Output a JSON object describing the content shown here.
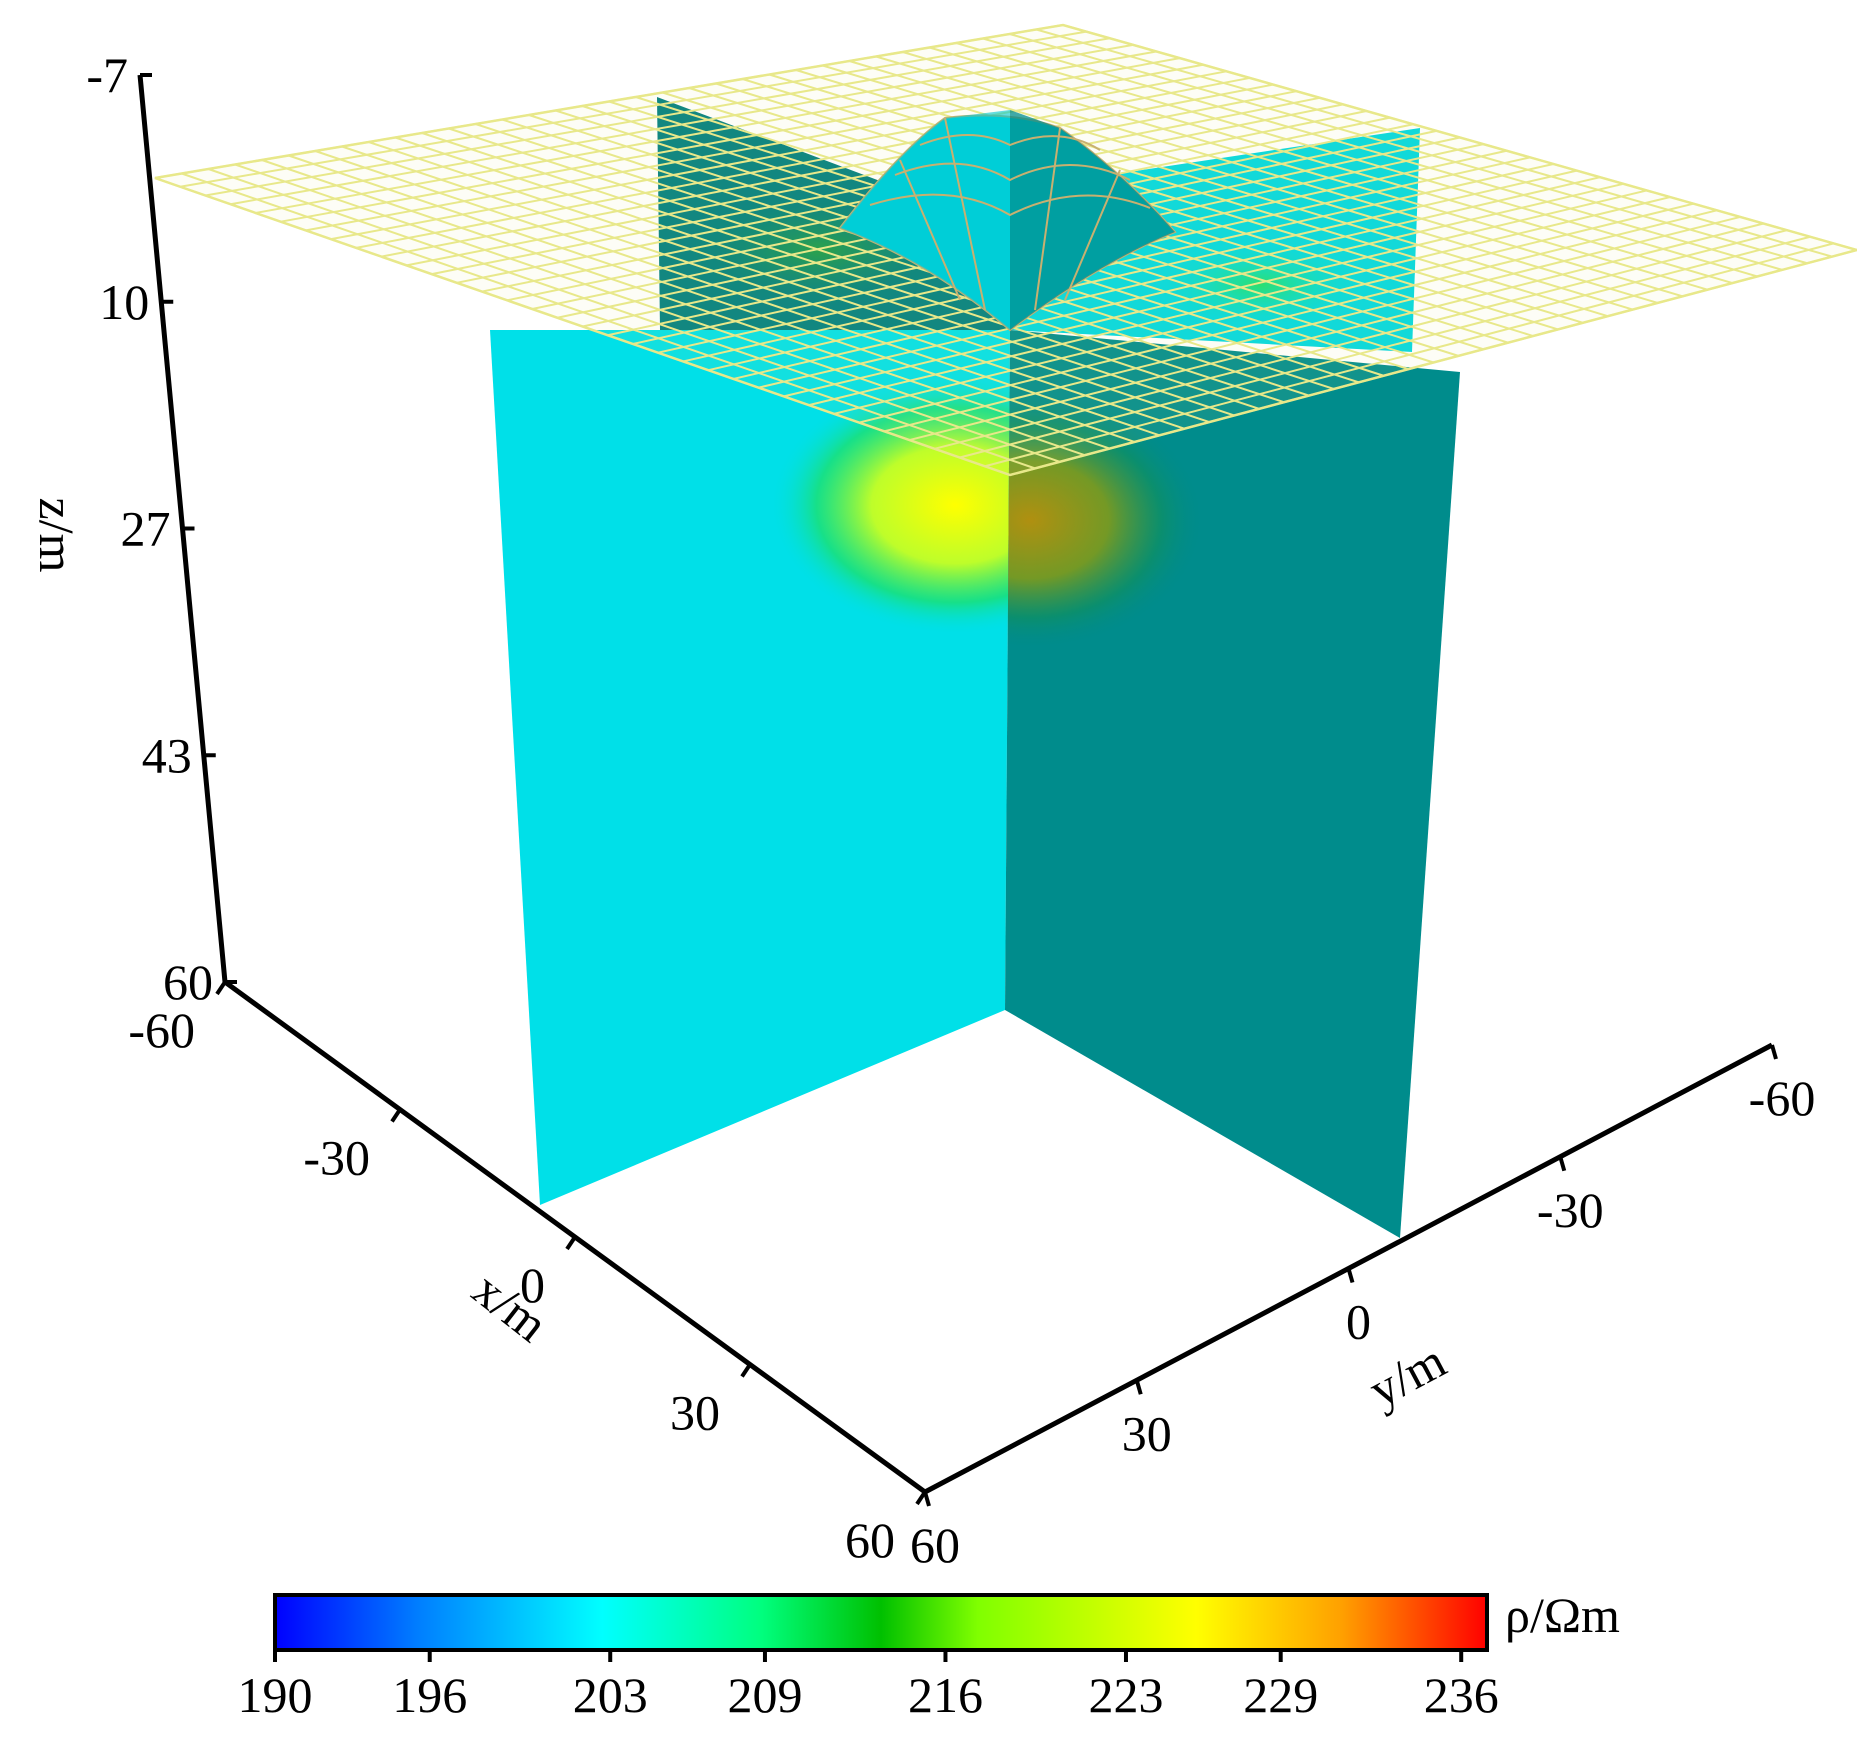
{
  "chart_data": {
    "type": "heatmap",
    "title": "",
    "axes": {
      "z": {
        "label": "z/m",
        "ticks": [
          "-7",
          "10",
          "27",
          "43",
          "60"
        ],
        "range": [
          -7,
          60
        ]
      },
      "x": {
        "label": "x/m",
        "ticks": [
          "-60",
          "-30",
          "0",
          "30",
          "60"
        ],
        "range": [
          -60,
          60
        ]
      },
      "y": {
        "label": "y/m",
        "ticks": [
          "-60",
          "-30",
          "0",
          "30",
          "60"
        ],
        "range": [
          -60,
          60
        ]
      }
    },
    "colorbar": {
      "label": "ρ/Ωm",
      "ticks": [
        "190",
        "196",
        "203",
        "209",
        "216",
        "223",
        "229",
        "236"
      ],
      "range": [
        190,
        237
      ],
      "colormap": [
        "#0000ff",
        "#0080ff",
        "#00ffff",
        "#00ff80",
        "#00c000",
        "#80ff00",
        "#ffff00",
        "#ffa000",
        "#ff0000"
      ]
    },
    "slices": [
      {
        "plane": "x = 0",
        "background_resistivity": 205,
        "anomaly_peak_resistivity": 226,
        "base_color": "#00e0e8"
      },
      {
        "plane": "y = 0",
        "background_resistivity": 205,
        "anomaly_peak_resistivity": 226,
        "base_color": "#008c8c"
      }
    ],
    "surface": {
      "type": "mesh",
      "color": "#e8e88a",
      "bump_color": "#00d8e0"
    },
    "grid": false,
    "legend": "none"
  }
}
